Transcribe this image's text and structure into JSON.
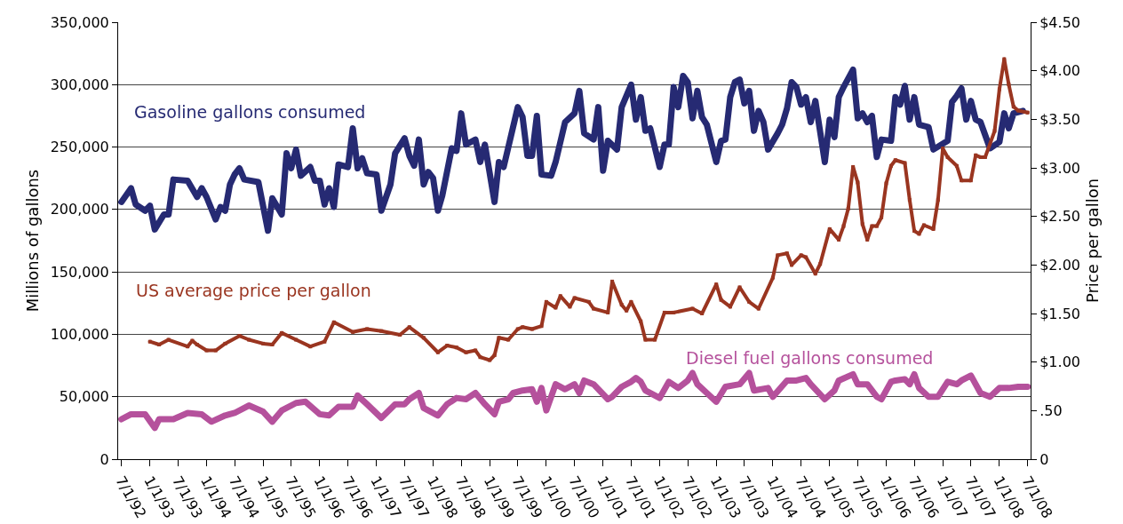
{
  "chart_data": {
    "type": "line",
    "xlabel": null,
    "ylabel": "Millions of gallons",
    "y2label": "Price per gallon",
    "grid": "y",
    "marker": "square",
    "line_style": "solid",
    "xlim": [
      "1992-06-10",
      "2008-07-20"
    ],
    "xticks": [
      {
        "value": "1992-07-01",
        "label": "7/1/92"
      },
      {
        "value": "1993-01-01",
        "label": "1/1/93"
      },
      {
        "value": "1993-07-01",
        "label": "7/1/93"
      },
      {
        "value": "1994-01-01",
        "label": "1/1/94"
      },
      {
        "value": "1994-07-01",
        "label": "7/1/94"
      },
      {
        "value": "1995-01-01",
        "label": "1/1/95"
      },
      {
        "value": "1995-07-01",
        "label": "7/1/95"
      },
      {
        "value": "1996-01-01",
        "label": "1/1/96"
      },
      {
        "value": "1996-07-01",
        "label": "7/1/96"
      },
      {
        "value": "1997-01-01",
        "label": "1/1/97"
      },
      {
        "value": "1997-07-01",
        "label": "7/1/97"
      },
      {
        "value": "1998-01-01",
        "label": "1/1/98"
      },
      {
        "value": "1998-07-01",
        "label": "7/1/98"
      },
      {
        "value": "1999-01-01",
        "label": "1/1/99"
      },
      {
        "value": "1999-07-01",
        "label": "7/1/99"
      },
      {
        "value": "2000-01-01",
        "label": "1/1/00"
      },
      {
        "value": "2000-07-01",
        "label": "7/1/00"
      },
      {
        "value": "2001-01-01",
        "label": "1/1/01"
      },
      {
        "value": "2001-07-01",
        "label": "7/1/01"
      },
      {
        "value": "2002-01-01",
        "label": "1/1/02"
      },
      {
        "value": "2002-07-01",
        "label": "7/1/02"
      },
      {
        "value": "2003-01-01",
        "label": "1/1/03"
      },
      {
        "value": "2003-07-01",
        "label": "7/1/03"
      },
      {
        "value": "2004-01-01",
        "label": "1/1/04"
      },
      {
        "value": "2004-07-01",
        "label": "7/1/04"
      },
      {
        "value": "2005-01-01",
        "label": "1/1/05"
      },
      {
        "value": "2005-07-01",
        "label": "7/1/05"
      },
      {
        "value": "2006-01-01",
        "label": "1/1/06"
      },
      {
        "value": "2006-07-01",
        "label": "7/1/06"
      },
      {
        "value": "2007-01-01",
        "label": "1/1/07"
      },
      {
        "value": "2007-07-01",
        "label": "7/1/07"
      },
      {
        "value": "2008-01-01",
        "label": "1/1/08"
      },
      {
        "value": "2008-07-01",
        "label": "7/1/08"
      }
    ],
    "ylim": [
      0,
      350000
    ],
    "yticks": [
      0,
      {
        "value": 50000,
        "label": "50,000"
      },
      {
        "value": 100000,
        "label": "100,000"
      },
      {
        "value": 150000,
        "label": "150,000"
      },
      {
        "value": 200000,
        "label": "200,000"
      },
      {
        "value": 250000,
        "label": "250,000"
      },
      {
        "value": 300000,
        "label": "300,000"
      },
      {
        "value": 350000,
        "label": "350,000"
      }
    ],
    "y2lim": [
      0,
      4.5
    ],
    "y2ticks": [
      0,
      {
        "value": 0.5,
        "label": ".50"
      },
      {
        "value": 1,
        "label": "$1.00"
      },
      {
        "value": 1.5,
        "label": "$1.50"
      },
      {
        "value": 2,
        "label": "$2.00"
      },
      {
        "value": 2.5,
        "label": "$2.50"
      },
      {
        "value": 3,
        "label": "$3.00"
      },
      {
        "value": 3.5,
        "label": "$3.50"
      },
      {
        "value": 4,
        "label": "$4.00"
      },
      {
        "value": 4.5,
        "label": "$4.50"
      }
    ],
    "series": [
      {
        "name": "Gasoline gallons consumed",
        "color": "#262a73",
        "x": [
          "1992-07",
          "1992-09",
          "1992-10",
          "1992-12",
          "1993-01",
          "1993-02",
          "1993-04",
          "1993-05",
          "1993-06",
          "1993-09",
          "1993-11",
          "1993-12",
          "1994-01",
          "1994-03",
          "1994-04",
          "1994-05",
          "1994-06",
          "1994-07",
          "1994-08",
          "1994-09",
          "1994-12",
          "1995-02",
          "1995-03",
          "1995-05",
          "1995-06",
          "1995-07",
          "1995-08",
          "1995-09",
          "1995-11",
          "1995-12",
          "1996-01",
          "1996-02",
          "1996-03",
          "1996-04",
          "1996-05",
          "1996-07",
          "1996-08",
          "1996-09",
          "1996-10",
          "1996-11",
          "1997-01",
          "1997-02",
          "1997-04",
          "1997-05",
          "1997-07",
          "1997-08",
          "1997-09",
          "1997-10",
          "1997-11",
          "1997-12",
          "1998-01",
          "1998-02",
          "1998-03",
          "1998-05",
          "1998-06",
          "1998-07",
          "1998-08",
          "1998-10",
          "1998-11",
          "1998-12",
          "1999-02",
          "1999-03",
          "1999-04",
          "1999-07",
          "1999-08",
          "1999-09",
          "1999-10",
          "1999-11",
          "1999-12",
          "2000-02",
          "2000-03",
          "2000-05",
          "2000-07",
          "2000-08",
          "2000-09",
          "2000-11",
          "2000-12",
          "2001-01",
          "2001-02",
          "2001-04",
          "2001-05",
          "2001-07",
          "2001-08",
          "2001-09",
          "2001-10",
          "2001-11",
          "2002-01",
          "2002-02",
          "2002-03",
          "2002-04",
          "2002-05",
          "2002-06",
          "2002-07",
          "2002-08",
          "2002-09",
          "2002-10",
          "2002-11",
          "2003-01",
          "2003-02",
          "2003-03",
          "2003-04",
          "2003-05",
          "2003-06",
          "2003-07",
          "2003-08",
          "2003-09",
          "2003-10",
          "2003-11",
          "2003-12",
          "2004-02",
          "2004-03",
          "2004-04",
          "2004-05",
          "2004-06",
          "2004-07",
          "2004-08",
          "2004-09",
          "2004-10",
          "2004-12",
          "2005-01",
          "2005-02",
          "2005-03",
          "2005-04",
          "2005-06",
          "2005-07",
          "2005-08",
          "2005-09",
          "2005-10",
          "2005-11",
          "2005-12",
          "2006-02",
          "2006-03",
          "2006-04",
          "2006-05",
          "2006-06",
          "2006-07",
          "2006-08",
          "2006-10",
          "2006-11",
          "2007-02",
          "2007-03",
          "2007-04",
          "2007-05",
          "2007-06",
          "2007-07",
          "2007-08",
          "2007-09",
          "2007-11",
          "2008-01",
          "2008-02",
          "2008-03",
          "2008-04",
          "2008-06"
        ],
        "values": [
          206000,
          217000,
          204000,
          199000,
          203000,
          184000,
          196000,
          196000,
          224000,
          223000,
          210000,
          217000,
          210000,
          192000,
          202000,
          199000,
          220000,
          228000,
          233000,
          224000,
          222000,
          183000,
          209000,
          196000,
          245000,
          233000,
          248000,
          227000,
          234000,
          223000,
          223000,
          204000,
          217000,
          202000,
          236000,
          234000,
          265000,
          233000,
          241000,
          229000,
          228000,
          199000,
          220000,
          245000,
          257000,
          243000,
          235000,
          256000,
          220000,
          230000,
          225000,
          199000,
          211000,
          249000,
          247000,
          277000,
          252000,
          256000,
          238000,
          252000,
          206000,
          238000,
          234000,
          282000,
          274000,
          243000,
          243000,
          275000,
          228000,
          227000,
          238000,
          270000,
          277000,
          295000,
          261000,
          256000,
          282000,
          231000,
          255000,
          248000,
          282000,
          300000,
          272000,
          290000,
          263000,
          265000,
          234000,
          252000,
          252000,
          298000,
          282000,
          307000,
          302000,
          273000,
          295000,
          274000,
          268000,
          238000,
          255000,
          256000,
          290000,
          302000,
          304000,
          285000,
          295000,
          263000,
          279000,
          270000,
          248000,
          261000,
          268000,
          281000,
          302000,
          298000,
          284000,
          290000,
          270000,
          287000,
          238000,
          272000,
          258000,
          290000,
          298000,
          312000,
          273000,
          277000,
          270000,
          275000,
          242000,
          256000,
          255000,
          290000,
          284000,
          299000,
          272000,
          290000,
          268000,
          266000,
          248000,
          255000,
          286000,
          291000,
          297000,
          272000,
          287000,
          272000,
          270000,
          249000,
          254000,
          277000,
          265000,
          277000,
          279000
        ]
      },
      {
        "name": "US average price per gallon",
        "color": "#9a3520",
        "axis": "y2",
        "x": [
          "1993-01",
          "1993-03",
          "1993-05",
          "1993-09",
          "1993-10",
          "1993-11",
          "1994-01",
          "1994-03",
          "1994-05",
          "1994-08",
          "1994-10",
          "1995-01",
          "1995-03",
          "1995-05",
          "1995-08",
          "1995-11",
          "1996-02",
          "1996-04",
          "1996-08",
          "1996-11",
          "1997-02",
          "1997-06",
          "1997-08",
          "1997-11",
          "1998-02",
          "1998-04",
          "1998-06",
          "1998-08",
          "1998-10",
          "1998-11",
          "1999-01",
          "1999-02",
          "1999-03",
          "1999-05",
          "1999-07",
          "1999-08",
          "1999-10",
          "1999-12",
          "2000-01",
          "2000-03",
          "2000-04",
          "2000-06",
          "2000-07",
          "2000-10",
          "2000-11",
          "2001-02",
          "2001-03",
          "2001-05",
          "2001-06",
          "2001-07",
          "2001-09",
          "2001-10",
          "2001-12",
          "2002-02",
          "2002-04",
          "2002-08",
          "2002-10",
          "2003-01",
          "2003-02",
          "2003-04",
          "2003-06",
          "2003-08",
          "2003-10",
          "2004-01",
          "2004-02",
          "2004-04",
          "2004-05",
          "2004-07",
          "2004-08",
          "2004-10",
          "2004-11",
          "2005-01",
          "2005-03",
          "2005-04",
          "2005-05",
          "2005-06",
          "2005-07",
          "2005-08",
          "2005-09",
          "2005-10",
          "2005-11",
          "2005-12",
          "2006-01",
          "2006-02",
          "2006-03",
          "2006-05",
          "2006-06",
          "2006-07",
          "2006-08",
          "2006-09",
          "2006-11",
          "2006-12",
          "2007-01",
          "2007-02",
          "2007-04",
          "2007-05",
          "2007-07",
          "2007-08",
          "2007-09",
          "2007-10",
          "2007-12",
          "2008-01",
          "2008-02",
          "2008-03",
          "2008-04",
          "2008-05",
          "2008-07"
        ],
        "values": [
          1.21,
          1.18,
          1.23,
          1.16,
          1.22,
          1.18,
          1.12,
          1.12,
          1.19,
          1.27,
          1.23,
          1.19,
          1.18,
          1.3,
          1.23,
          1.16,
          1.21,
          1.41,
          1.31,
          1.34,
          1.32,
          1.28,
          1.36,
          1.25,
          1.1,
          1.17,
          1.15,
          1.1,
          1.12,
          1.05,
          1.02,
          1.07,
          1.25,
          1.23,
          1.34,
          1.36,
          1.34,
          1.37,
          1.62,
          1.56,
          1.68,
          1.57,
          1.66,
          1.62,
          1.55,
          1.51,
          1.83,
          1.59,
          1.53,
          1.62,
          1.42,
          1.23,
          1.23,
          1.51,
          1.51,
          1.55,
          1.5,
          1.8,
          1.64,
          1.57,
          1.77,
          1.62,
          1.55,
          1.87,
          2.1,
          2.12,
          2.0,
          2.1,
          2.08,
          1.91,
          2.01,
          2.37,
          2.26,
          2.4,
          2.58,
          3.01,
          2.85,
          2.42,
          2.26,
          2.4,
          2.4,
          2.49,
          2.84,
          3.02,
          3.08,
          3.05,
          2.67,
          2.35,
          2.32,
          2.41,
          2.37,
          2.67,
          3.2,
          3.11,
          3.02,
          2.87,
          2.87,
          3.13,
          3.11,
          3.11,
          3.38,
          3.81,
          4.12,
          3.86,
          3.63,
          3.59,
          3.57
        ]
      },
      {
        "name": "Diesel fuel gallons consumed",
        "color": "#b5519c",
        "x": [
          "1992-07",
          "1992-09",
          "1992-12",
          "1993-02",
          "1993-03",
          "1993-06",
          "1993-09",
          "1993-12",
          "1994-02",
          "1994-05",
          "1994-07",
          "1994-10",
          "1995-01",
          "1995-03",
          "1995-05",
          "1995-08",
          "1995-10",
          "1996-01",
          "1996-03",
          "1996-05",
          "1996-08",
          "1996-09",
          "1996-11",
          "1997-02",
          "1997-05",
          "1997-07",
          "1997-08",
          "1997-10",
          "1997-11",
          "1998-02",
          "1998-04",
          "1998-06",
          "1998-08",
          "1998-10",
          "1998-12",
          "1999-02",
          "1999-03",
          "1999-05",
          "1999-06",
          "1999-08",
          "1999-10",
          "1999-11",
          "1999-12",
          "2000-01",
          "2000-03",
          "2000-05",
          "2000-07",
          "2000-08",
          "2000-09",
          "2000-11",
          "2001-02",
          "2001-03",
          "2001-05",
          "2001-07",
          "2001-08",
          "2001-09",
          "2001-10",
          "2002-01",
          "2002-03",
          "2002-05",
          "2002-07",
          "2002-08",
          "2002-09",
          "2002-11",
          "2003-01",
          "2003-03",
          "2003-06",
          "2003-08",
          "2003-09",
          "2003-12",
          "2004-01",
          "2004-04",
          "2004-06",
          "2004-08",
          "2004-09",
          "2004-12",
          "2005-02",
          "2005-03",
          "2005-06",
          "2005-07",
          "2005-09",
          "2005-11",
          "2005-12",
          "2006-02",
          "2006-03",
          "2006-05",
          "2006-06",
          "2006-07",
          "2006-08",
          "2006-10",
          "2006-12",
          "2007-02",
          "2007-04",
          "2007-05",
          "2007-07",
          "2007-09",
          "2007-11",
          "2008-01",
          "2008-03",
          "2008-05",
          "2008-07"
        ],
        "values": [
          32000,
          36000,
          36000,
          25000,
          32000,
          32000,
          37000,
          36000,
          30000,
          35000,
          37000,
          43000,
          38000,
          30000,
          39000,
          45000,
          46000,
          36000,
          35000,
          42000,
          42000,
          51000,
          44000,
          33000,
          44000,
          44000,
          48000,
          53000,
          41000,
          35000,
          44000,
          49000,
          48000,
          53000,
          44000,
          36000,
          46000,
          48000,
          53000,
          55000,
          56000,
          46000,
          57000,
          39000,
          60000,
          56000,
          60000,
          53000,
          63000,
          60000,
          48000,
          50000,
          58000,
          62000,
          65000,
          62000,
          55000,
          49000,
          62000,
          57000,
          63000,
          69000,
          60000,
          53000,
          46000,
          58000,
          60000,
          69000,
          55000,
          57000,
          50000,
          63000,
          63000,
          65000,
          60000,
          48000,
          55000,
          63000,
          68000,
          60000,
          60000,
          50000,
          48000,
          62000,
          63000,
          64000,
          60000,
          68000,
          57000,
          50000,
          50000,
          62000,
          60000,
          63000,
          67000,
          53000,
          50000,
          57000,
          57000,
          58000,
          58000
        ]
      }
    ]
  }
}
